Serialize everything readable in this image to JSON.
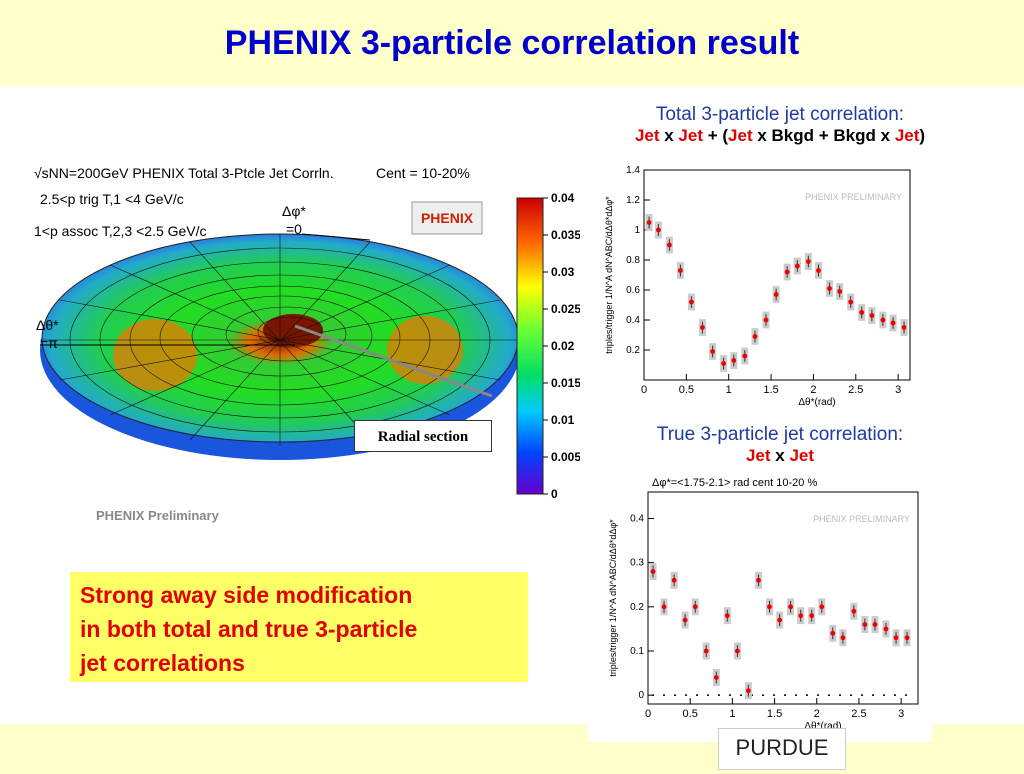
{
  "title": "PHENIX 3-particle correlation result",
  "surface": {
    "header": "√sNN=200GeV PHENIX Total 3-Ptcle Jet Corrln.",
    "cent": "Cent = 10-20%",
    "cut1": "2.5<p trig T,1 <4 GeV/c",
    "cut2": "1<p assoc T,2,3 <2.5 GeV/c",
    "dphi_label": "Δφ*",
    "dphi_val": "=0",
    "dtheta_label": "Δθ*",
    "dtheta_val": "=π",
    "logo_text": "PHENIX",
    "preliminary": "PHENIX Preliminary",
    "radial_section": "Radial section",
    "colorbar_ticks": [
      "0.04",
      "0.035",
      "0.03",
      "0.025",
      "0.02",
      "0.015",
      "0.01",
      "0.005",
      "0"
    ]
  },
  "top_panel": {
    "title_line1": "Total 3-particle jet correlation:",
    "t2_jet1": "Jet",
    "t2_x1": " x ",
    "t2_jet2": "Jet",
    "t2_plus": " + (",
    "t2_jet3": "Jet",
    "t2_bkgd1": " x Bkgd + Bkgd x ",
    "t2_jet4": "Jet",
    "t2_close": ")"
  },
  "bottom_panel": {
    "title_line1": "True 3-particle jet correlation:",
    "t2_jet1": "Jet",
    "t2_x": " x ",
    "t2_jet2": "Jet"
  },
  "callout": {
    "line1": "Strong away side modification",
    "line2": "in both total and true 3-particle",
    "line3": "jet correlations"
  },
  "purdue": "PURDUE",
  "chart_data": [
    {
      "type": "scatter",
      "title": "",
      "watermark": "PHENIX PRELIMINARY",
      "xlabel": "Δθ*(rad)",
      "ylabel": "triples/trigger 1/N^A dN^ABC/dΔθ*dΔφ*",
      "xlim": [
        0,
        3.14
      ],
      "ylim": [
        0,
        1.4
      ],
      "xticks": [
        "0",
        "0.5",
        "1",
        "1.5",
        "2",
        "2.5",
        "3"
      ],
      "yticks": [
        "0.2",
        "0.4",
        "0.6",
        "0.8",
        "1",
        "1.2",
        "1.4"
      ],
      "x": [
        0.06,
        0.17,
        0.3,
        0.43,
        0.56,
        0.69,
        0.81,
        0.94,
        1.06,
        1.19,
        1.31,
        1.44,
        1.56,
        1.69,
        1.81,
        1.94,
        2.06,
        2.19,
        2.31,
        2.44,
        2.57,
        2.69,
        2.82,
        2.94,
        3.07
      ],
      "y": [
        1.05,
        1.0,
        0.9,
        0.73,
        0.52,
        0.35,
        0.19,
        0.11,
        0.13,
        0.16,
        0.29,
        0.4,
        0.57,
        0.72,
        0.76,
        0.79,
        0.73,
        0.61,
        0.59,
        0.52,
        0.45,
        0.43,
        0.4,
        0.38,
        0.35
      ]
    },
    {
      "type": "scatter",
      "title": "Δφ*=<1.75-2.1> rad    cent 10-20 %",
      "watermark": "PHENIX PRELIMINARY",
      "xlabel": "Δθ*(rad)",
      "ylabel": "triples/trigger 1/N^A dN^ABC/dΔθ*dΔφ*",
      "xlim": [
        0,
        3.2
      ],
      "ylim": [
        -0.02,
        0.46
      ],
      "xticks": [
        "0",
        "0.5",
        "1",
        "1.5",
        "2",
        "2.5",
        "3"
      ],
      "yticks": [
        "0",
        "0.1",
        "0.2",
        "0.3",
        "0.4"
      ],
      "x": [
        0.06,
        0.19,
        0.31,
        0.44,
        0.56,
        0.69,
        0.81,
        0.94,
        1.06,
        1.19,
        1.31,
        1.44,
        1.56,
        1.69,
        1.81,
        1.94,
        2.06,
        2.19,
        2.31,
        2.44,
        2.57,
        2.69,
        2.82,
        2.94,
        3.07
      ],
      "y": [
        0.28,
        0.2,
        0.26,
        0.17,
        0.2,
        0.1,
        0.04,
        0.18,
        0.1,
        0.01,
        0.26,
        0.2,
        0.17,
        0.2,
        0.18,
        0.18,
        0.2,
        0.14,
        0.13,
        0.19,
        0.16,
        0.16,
        0.15,
        0.13,
        0.13
      ]
    }
  ]
}
